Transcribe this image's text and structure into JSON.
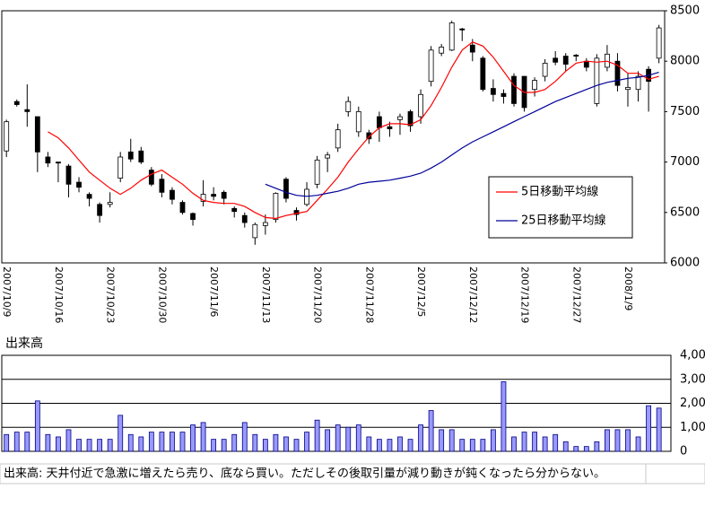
{
  "chart_data": [
    {
      "type": "candlestick",
      "categories": [
        "2007/10/9",
        null,
        null,
        null,
        null,
        "2007/10/16",
        null,
        null,
        null,
        null,
        "2007/10/23",
        null,
        null,
        null,
        null,
        "2007/10/30",
        null,
        null,
        null,
        null,
        "2007/11/6",
        null,
        null,
        null,
        null,
        "2007/11/13",
        null,
        null,
        null,
        null,
        "2007/11/20",
        null,
        null,
        null,
        null,
        "2007/11/28",
        null,
        null,
        null,
        null,
        "2007/12/5",
        null,
        null,
        null,
        null,
        "2007/12/12",
        null,
        null,
        null,
        null,
        "2007/12/19",
        null,
        null,
        null,
        null,
        "2007/12/27",
        null,
        null,
        null,
        null,
        "2008/1/9",
        null,
        null,
        null
      ],
      "open": [
        7110,
        7600,
        7520,
        7450,
        7050,
        7000,
        6960,
        6800,
        6680,
        6580,
        6580,
        6840,
        7100,
        7110,
        6920,
        6830,
        6720,
        6600,
        6490,
        6610,
        6680,
        6700,
        6540,
        6470,
        6250,
        6370,
        6430,
        6830,
        6520,
        6580,
        6780,
        7040,
        7140,
        7500,
        7300,
        7290,
        7450,
        7350,
        7420,
        7500,
        7450,
        7800,
        8080,
        8110,
        8320,
        8160,
        8030,
        7730,
        7680,
        7850,
        7850,
        7720,
        7850,
        8030,
        8050,
        8060,
        8000,
        7580,
        7940,
        8000,
        7720,
        7720,
        7920,
        8030
      ],
      "high": [
        7420,
        7620,
        7770,
        7450,
        7100,
        7000,
        6980,
        6850,
        6700,
        6600,
        6700,
        7100,
        7230,
        7150,
        6950,
        6880,
        6750,
        6620,
        6500,
        6820,
        6750,
        6720,
        6560,
        6500,
        6400,
        6480,
        6700,
        6850,
        6550,
        6800,
        7060,
        7100,
        7380,
        7650,
        7550,
        7320,
        7500,
        7400,
        7480,
        7520,
        7720,
        8150,
        8170,
        8400,
        8330,
        8220,
        8050,
        7820,
        7720,
        7880,
        7850,
        7840,
        8020,
        8100,
        8080,
        8070,
        8030,
        8070,
        8160,
        8080,
        7880,
        7900,
        7950,
        8360
      ],
      "low": [
        7050,
        7550,
        7350,
        6900,
        6950,
        6800,
        6650,
        6700,
        6560,
        6400,
        6550,
        6800,
        7000,
        6980,
        6760,
        6650,
        6580,
        6480,
        6370,
        6560,
        6620,
        6580,
        6450,
        6350,
        6180,
        6280,
        6400,
        6600,
        6420,
        6560,
        6740,
        6900,
        7100,
        7450,
        7250,
        7180,
        7200,
        7250,
        7270,
        7300,
        7380,
        7750,
        8050,
        8100,
        8200,
        8000,
        7700,
        7600,
        7580,
        7550,
        7500,
        7650,
        7800,
        7960,
        7900,
        8000,
        7900,
        7550,
        7900,
        7700,
        7550,
        7600,
        7500,
        7980
      ],
      "close": [
        7400,
        7570,
        7500,
        7100,
        6990,
        6990,
        6780,
        6750,
        6640,
        6470,
        6600,
        7050,
        7030,
        7000,
        6780,
        6700,
        6630,
        6500,
        6430,
        6680,
        6660,
        6640,
        6510,
        6400,
        6380,
        6400,
        6690,
        6640,
        6480,
        6730,
        7020,
        7070,
        7320,
        7600,
        7500,
        7230,
        7340,
        7330,
        7450,
        7360,
        7670,
        8110,
        8140,
        8380,
        8310,
        8090,
        7720,
        7670,
        7650,
        7580,
        7540,
        7810,
        7980,
        7990,
        7970,
        8050,
        7940,
        8030,
        8070,
        7760,
        7740,
        7850,
        7800,
        8330
      ],
      "series": [
        {
          "name": "5日移動平均線",
          "color": "#ff0000",
          "values": [
            null,
            null,
            null,
            null,
            7300,
            7240,
            7140,
            7020,
            6900,
            6820,
            6740,
            6680,
            6740,
            6820,
            6880,
            6920,
            6850,
            6780,
            6690,
            6620,
            6600,
            6590,
            6590,
            6560,
            6500,
            6450,
            6440,
            6470,
            6490,
            6510,
            6620,
            6730,
            6850,
            7000,
            7130,
            7250,
            7340,
            7380,
            7380,
            7370,
            7420,
            7560,
            7740,
            7940,
            8110,
            8190,
            8150,
            8040,
            7900,
            7760,
            7690,
            7690,
            7720,
            7800,
            7900,
            7980,
            8000,
            7990,
            8000,
            7960,
            7880,
            7880,
            7820,
            7850
          ]
        },
        {
          "name": "25日移動平均線",
          "color": "#000099",
          "values": [
            null,
            null,
            null,
            null,
            null,
            null,
            null,
            null,
            null,
            null,
            null,
            null,
            null,
            null,
            null,
            null,
            null,
            null,
            null,
            null,
            null,
            null,
            null,
            null,
            null,
            6780,
            6740,
            6700,
            6670,
            6660,
            6670,
            6690,
            6710,
            6740,
            6780,
            6800,
            6810,
            6820,
            6840,
            6860,
            6890,
            6940,
            7000,
            7070,
            7140,
            7200,
            7250,
            7300,
            7350,
            7400,
            7450,
            7500,
            7550,
            7600,
            7640,
            7680,
            7720,
            7760,
            7790,
            7810,
            7830,
            7840,
            7860,
            7890
          ]
        }
      ],
      "ylim": [
        6000,
        8500
      ],
      "yticks": [
        6000,
        6500,
        7000,
        7500,
        8000,
        8500
      ]
    },
    {
      "type": "bar",
      "title": "出来高",
      "color": "#9999ff",
      "values": [
        0.7,
        0.8,
        0.8,
        2.1,
        0.7,
        0.6,
        0.9,
        0.5,
        0.5,
        0.5,
        0.5,
        1.5,
        0.7,
        0.6,
        0.8,
        0.8,
        0.8,
        0.8,
        1.1,
        1.2,
        0.5,
        0.5,
        0.7,
        1.2,
        0.7,
        0.5,
        0.7,
        0.6,
        0.5,
        0.8,
        1.3,
        0.9,
        1.1,
        1.0,
        1.1,
        0.6,
        0.5,
        0.5,
        0.6,
        0.5,
        1.1,
        1.7,
        0.9,
        0.9,
        0.5,
        0.5,
        0.5,
        0.9,
        2.9,
        0.6,
        0.8,
        0.8,
        0.6,
        0.7,
        0.4,
        0.2,
        0.2,
        0.4,
        0.9,
        0.9,
        0.9,
        0.6,
        1.9,
        1.8
      ],
      "ylim": [
        0,
        4
      ],
      "yticks": [
        0,
        {
          "value": 1,
          "label": "1,00"
        },
        {
          "value": 2,
          "label": "2,00"
        },
        {
          "value": 3,
          "label": "3,00"
        },
        {
          "value": 4,
          "label": "4,00"
        }
      ],
      "grid": true
    }
  ],
  "caption": "出来高: 天井付近で急激に増えたら売り、底なら買い。ただしその後取引量が減り動きが鈍くなったら分からない。"
}
